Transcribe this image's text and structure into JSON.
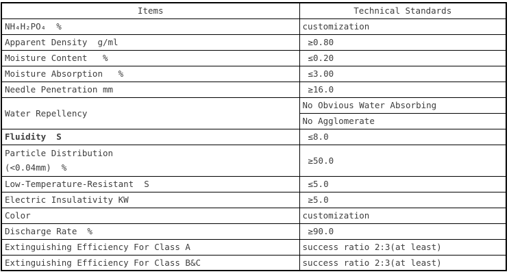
{
  "table": {
    "header": {
      "items": "Items",
      "standards": "Technical Standards"
    },
    "rows": [
      {
        "item": "NH₄H₂PO₄  %",
        "value": "customization"
      },
      {
        "item": "Apparent Density  g/ml",
        "value": "≥0.80"
      },
      {
        "item": "Moisture Content   %",
        "value": "≤0.20"
      },
      {
        "item": "Moisture Absorption   %",
        "value": "≤3.00"
      },
      {
        "item": "Needle Penetration mm",
        "value": "≥16.0"
      },
      {
        "item": "Water Repellency",
        "value": "No Obvious Water Absorbing"
      },
      {
        "item": "",
        "value": "No Agglomerate"
      },
      {
        "item": "Fluidity  S",
        "value": "≤8.0"
      },
      {
        "item": "Particle Distribution\n(<0.04mm)  %",
        "value": "≥50.0"
      },
      {
        "item": "Low-Temperature-Resistant  S",
        "value": "≤5.0"
      },
      {
        "item": "Electric Insulativity KW",
        "value": "≥5.0"
      },
      {
        "item": "Color",
        "value": "customization"
      },
      {
        "item": "Discharge Rate  %",
        "value": "≥90.0"
      },
      {
        "item": "Extinguishing Efficiency For Class A",
        "value": "success ratio 2:3(at least)"
      },
      {
        "item": "Extinguishing Efficiency For Class B&C",
        "value": "success ratio 2:3(at least)"
      }
    ]
  }
}
